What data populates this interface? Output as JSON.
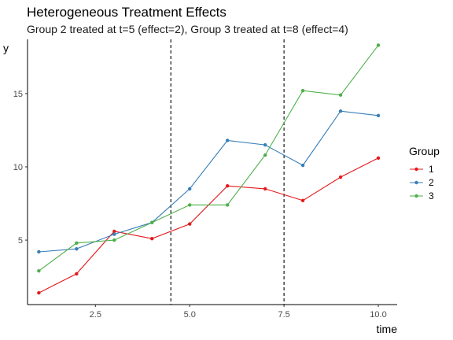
{
  "chart_data": {
    "type": "line",
    "title": "Heterogeneous Treatment Effects",
    "subtitle": "Group 2 treated at t=5 (effect=2), Group 3 treated at t=8 (effect=4)",
    "xlabel": "time",
    "ylabel": "y",
    "xlim": [
      0.7,
      10.5
    ],
    "ylim": [
      0.6,
      18.7
    ],
    "x_ticks": [
      2.5,
      5.0,
      7.5,
      10.0
    ],
    "x_tick_labels": [
      "2.5",
      "5.0",
      "7.5",
      "10.0"
    ],
    "y_ticks": [
      5,
      10,
      15
    ],
    "y_tick_labels": [
      "5",
      "10",
      "15"
    ],
    "vlines": [
      4.5,
      7.5
    ],
    "grid": false,
    "legend": {
      "title": "Group",
      "position": "right"
    },
    "x": [
      1,
      2,
      3,
      4,
      5,
      6,
      7,
      8,
      9,
      10
    ],
    "series": [
      {
        "name": "1",
        "color": "#e41a1c",
        "values": [
          1.4,
          2.7,
          5.6,
          5.1,
          6.1,
          8.7,
          8.5,
          7.7,
          9.3,
          10.6
        ]
      },
      {
        "name": "2",
        "color": "#377eb8",
        "values": [
          4.2,
          4.4,
          5.4,
          6.2,
          8.5,
          11.8,
          11.5,
          10.1,
          13.8,
          13.5
        ]
      },
      {
        "name": "3",
        "color": "#4daf4a",
        "values": [
          2.9,
          4.8,
          5.0,
          6.2,
          7.4,
          7.4,
          10.8,
          15.2,
          14.9,
          18.3
        ]
      }
    ]
  }
}
